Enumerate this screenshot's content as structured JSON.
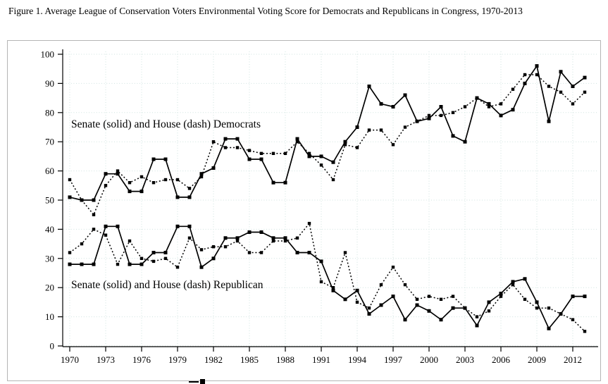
{
  "title": "Figure 1. Average League of Conservation Voters Environmental Voting Score for Democrats and Republicans in Congress, 1970-2013",
  "annotations": {
    "democrats": "Senate (solid) and House (dash) Democrats",
    "republicans": "Senate (solid) and House (dash) Republican"
  },
  "chart_data": {
    "type": "line",
    "x": [
      1970,
      1971,
      1972,
      1973,
      1974,
      1975,
      1976,
      1977,
      1978,
      1979,
      1980,
      1981,
      1982,
      1983,
      1984,
      1985,
      1986,
      1987,
      1988,
      1989,
      1990,
      1991,
      1992,
      1993,
      1994,
      1995,
      1996,
      1997,
      1998,
      1999,
      2000,
      2001,
      2002,
      2003,
      2004,
      2005,
      2006,
      2007,
      2008,
      2009,
      2010,
      2011,
      2012,
      2013
    ],
    "series": [
      {
        "name": "Senate Democrats",
        "style": "solid",
        "values": [
          51,
          50,
          50,
          59,
          59,
          53,
          53,
          64,
          64,
          51,
          51,
          59,
          61,
          71,
          71,
          64,
          64,
          56,
          56,
          71,
          65,
          65,
          63,
          70,
          75,
          89,
          83,
          82,
          86,
          77,
          78,
          82,
          72,
          70,
          85,
          83,
          79,
          81,
          90,
          96,
          77,
          94,
          89,
          92
        ]
      },
      {
        "name": "House Democrats",
        "style": "dash",
        "values": [
          57,
          50,
          45,
          55,
          60,
          56,
          58,
          56,
          57,
          57,
          54,
          58,
          70,
          68,
          68,
          67,
          66,
          66,
          66,
          70,
          66,
          62,
          57,
          69,
          68,
          74,
          74,
          69,
          75,
          77,
          79,
          79,
          80,
          82,
          85,
          82,
          83,
          88,
          93,
          93,
          89,
          87,
          83,
          87
        ]
      },
      {
        "name": "Senate Republicans",
        "style": "solid",
        "values": [
          28,
          28,
          28,
          41,
          41,
          28,
          28,
          32,
          32,
          41,
          41,
          27,
          30,
          37,
          37,
          39,
          39,
          37,
          37,
          32,
          32,
          29,
          19,
          16,
          19,
          11,
          14,
          17,
          9,
          14,
          12,
          9,
          13,
          13,
          7,
          15,
          18,
          22,
          23,
          15,
          6,
          11,
          17,
          17
        ]
      },
      {
        "name": "House Republicans",
        "style": "dash",
        "values": [
          32,
          35,
          40,
          38,
          28,
          36,
          30,
          29,
          30,
          27,
          37,
          33,
          34,
          34,
          36,
          32,
          32,
          36,
          36,
          37,
          42,
          22,
          20,
          32,
          15,
          13,
          21,
          27,
          21,
          16,
          17,
          16,
          17,
          13,
          10,
          12,
          17,
          21,
          16,
          13,
          13,
          11,
          9,
          5
        ]
      }
    ],
    "xticks": [
      1970,
      1973,
      1976,
      1979,
      1982,
      1985,
      1988,
      1991,
      1994,
      1997,
      2000,
      2003,
      2006,
      2009,
      2012
    ],
    "yticks": [
      0,
      10,
      20,
      30,
      40,
      50,
      60,
      70,
      80,
      90,
      100
    ],
    "ylim": [
      0,
      100
    ],
    "xlabel": "",
    "ylabel": "",
    "grid": "dotted",
    "legend_position": "labels-inside-plot",
    "colors": {
      "line": "#000000",
      "grid": "#cfe3df",
      "border": "#b5b5b5"
    }
  }
}
